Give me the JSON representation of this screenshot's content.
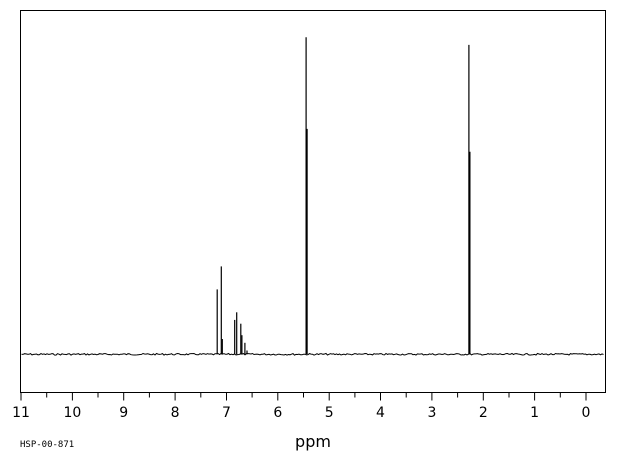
{
  "chart_data": {
    "type": "line",
    "title": "",
    "xlabel": "ppm",
    "ylabel": "",
    "x_reversed": true,
    "xlim": [
      11.0,
      -0.4
    ],
    "ylim": [
      0,
      1.0
    ],
    "x_ticks": [
      "11",
      "10",
      "9",
      "8",
      "7",
      "6",
      "5",
      "4",
      "3",
      "2",
      "1",
      "0"
    ],
    "x_tick_values": [
      11,
      10,
      9,
      8,
      7,
      6,
      5,
      4,
      3,
      2,
      1,
      0
    ],
    "grid": false,
    "legend": "none",
    "baseline": 0.1,
    "peaks": [
      {
        "ppm": 7.18,
        "height": 0.27
      },
      {
        "ppm": 7.1,
        "height": 0.33
      },
      {
        "ppm": 7.08,
        "height": 0.14
      },
      {
        "ppm": 6.84,
        "height": 0.19
      },
      {
        "ppm": 6.8,
        "height": 0.21
      },
      {
        "ppm": 6.72,
        "height": 0.18
      },
      {
        "ppm": 6.7,
        "height": 0.15
      },
      {
        "ppm": 6.64,
        "height": 0.13
      },
      {
        "ppm": 6.6,
        "height": 0.11
      },
      {
        "ppm": 5.45,
        "height": 0.93
      },
      {
        "ppm": 5.43,
        "height": 0.69
      },
      {
        "ppm": 2.28,
        "height": 0.91
      },
      {
        "ppm": 2.26,
        "height": 0.63
      }
    ],
    "code": "HSP-00-871"
  }
}
